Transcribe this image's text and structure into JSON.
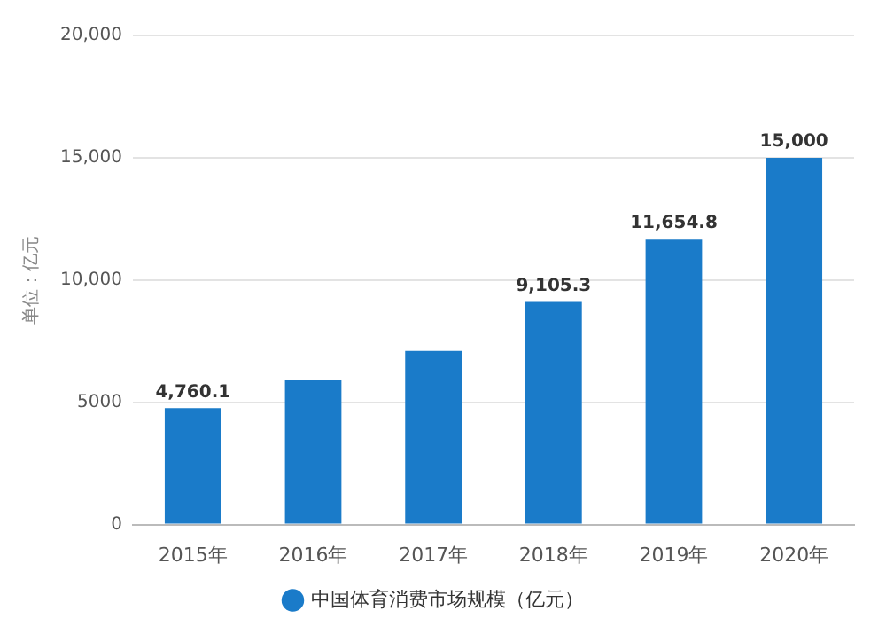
{
  "chart_data": {
    "type": "bar",
    "ylabel": "单位：亿元",
    "categories": [
      "2015年",
      "2016年",
      "2017年",
      "2018年",
      "2019年",
      "2020年"
    ],
    "series": [
      {
        "name": "中国体育消费市场规模（亿元）",
        "color": "#1a7bc9",
        "values": [
          4760.1,
          5900,
          7100,
          9105.3,
          11654.8,
          15000
        ],
        "value_labels": [
          "4,760.1",
          null,
          null,
          "9,105.3",
          "11,654.8",
          "15,000"
        ]
      }
    ],
    "ylim": [
      0,
      20000
    ],
    "yticks": [
      0,
      {
        "value": 5000,
        "label": "5000"
      },
      {
        "value": 10000,
        "label": "10,000"
      },
      {
        "value": 15000,
        "label": "15,000"
      },
      {
        "value": 20000,
        "label": "20,000"
      }
    ],
    "grid": "y",
    "legend": "bottom"
  }
}
